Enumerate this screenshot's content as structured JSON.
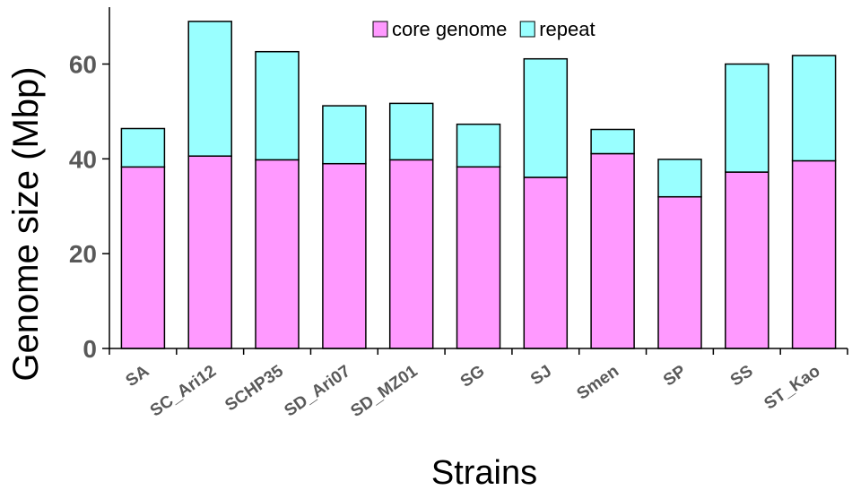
{
  "chart_data": {
    "type": "bar",
    "stacked": true,
    "categories": [
      "SA",
      "SC_Ari12",
      "SCHP35",
      "SD_Ari07",
      "SD_MZ01",
      "SG",
      "SJ",
      "Smen",
      "SP",
      "SS",
      "ST_Kao"
    ],
    "series": [
      {
        "name": "core genome",
        "values": [
          38.3,
          40.6,
          39.8,
          39.0,
          39.8,
          38.3,
          36.1,
          41.1,
          32.0,
          37.2,
          39.6
        ],
        "color": "#ff99ff"
      },
      {
        "name": "repeat",
        "values": [
          8.1,
          28.4,
          22.8,
          12.2,
          11.9,
          9.0,
          25.0,
          5.1,
          7.9,
          22.8,
          22.2
        ],
        "color": "#99ffff"
      }
    ],
    "xlabel": "Strains",
    "ylabel": "Genome size (Mbp)",
    "ylim": [
      0,
      72
    ],
    "yticks": [
      0,
      20,
      40,
      60
    ],
    "grid": false,
    "legend_position": "top"
  }
}
